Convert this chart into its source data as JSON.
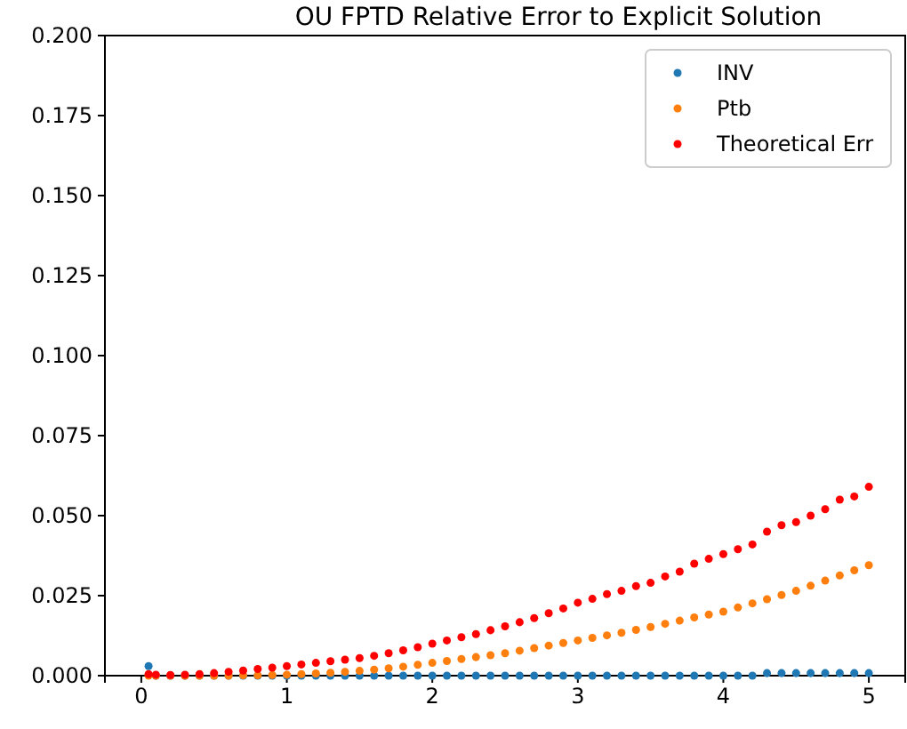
{
  "chart_data": {
    "type": "scatter",
    "title": "OU FPTD Relative Error to Explicit Solution",
    "x": [
      0.05,
      0.1,
      0.2,
      0.3,
      0.4,
      0.5,
      0.6,
      0.7,
      0.8,
      0.9,
      1.0,
      1.1,
      1.2,
      1.3,
      1.4,
      1.5,
      1.6,
      1.7,
      1.8,
      1.9,
      2.0,
      2.1,
      2.2,
      2.3,
      2.4,
      2.5,
      2.6,
      2.7,
      2.8,
      2.9,
      3.0,
      3.1,
      3.2,
      3.3,
      3.4,
      3.5,
      3.6,
      3.7,
      3.8,
      3.9,
      4.0,
      4.1,
      4.2,
      4.3,
      4.4,
      4.5,
      4.6,
      4.7,
      4.8,
      4.9,
      5.0
    ],
    "series": [
      {
        "name": "INV",
        "color": "#1f77b4",
        "values": [
          0.003,
          0,
          0,
          0,
          0,
          0,
          0,
          0,
          0,
          0,
          0,
          0,
          0,
          0,
          0,
          0,
          0,
          0,
          0,
          0,
          0,
          0,
          0,
          0,
          0,
          0,
          0,
          0,
          0,
          0,
          0,
          0,
          0,
          0,
          0,
          0,
          0,
          0,
          0,
          0,
          0,
          0,
          0,
          0.0008,
          0.0008,
          0.0008,
          0.0008,
          0.0008,
          0.0008,
          0.0008,
          0.0008
        ]
      },
      {
        "name": "Ptb",
        "color": "#ff7f0e",
        "values": [
          0,
          0,
          0,
          0,
          0,
          0,
          0,
          0.0001,
          0.0001,
          0.0002,
          0.0003,
          0.0005,
          0.0007,
          0.0009,
          0.0012,
          0.0015,
          0.0019,
          0.0023,
          0.0028,
          0.0034,
          0.004,
          0.0046,
          0.0052,
          0.0058,
          0.0064,
          0.007,
          0.0078,
          0.0086,
          0.0094,
          0.0102,
          0.011,
          0.0118,
          0.0126,
          0.0134,
          0.0143,
          0.0152,
          0.0162,
          0.0172,
          0.0182,
          0.0191,
          0.02,
          0.0213,
          0.0226,
          0.0239,
          0.0252,
          0.0265,
          0.0281,
          0.0297,
          0.0313,
          0.0329,
          0.0345
        ]
      },
      {
        "name": "Theoretical Err",
        "color": "#ff0000",
        "values": [
          0.0005,
          0.0003,
          0.0002,
          0.0003,
          0.0005,
          0.0008,
          0.0012,
          0.0016,
          0.0021,
          0.0025,
          0.003,
          0.0035,
          0.004,
          0.0045,
          0.005,
          0.0055,
          0.0062,
          0.007,
          0.0079,
          0.0089,
          0.01,
          0.011,
          0.012,
          0.013,
          0.0142,
          0.0154,
          0.0167,
          0.018,
          0.0195,
          0.021,
          0.0228,
          0.024,
          0.0255,
          0.0265,
          0.028,
          0.029,
          0.031,
          0.0325,
          0.035,
          0.0365,
          0.038,
          0.0395,
          0.041,
          0.045,
          0.047,
          0.048,
          0.05,
          0.052,
          0.055,
          0.056,
          0.059
        ]
      }
    ],
    "xlim": [
      -0.25,
      5.25
    ],
    "xticks": [
      0,
      1,
      2,
      3,
      4,
      5
    ],
    "ylim": [
      0,
      0.2
    ],
    "yticks": [
      {
        "value": 0,
        "label": "0.000"
      },
      {
        "value": 0.025,
        "label": "0.025"
      },
      {
        "value": 0.05,
        "label": "0.050"
      },
      {
        "value": 0.075,
        "label": "0.075"
      },
      {
        "value": 0.1,
        "label": "0.100"
      },
      {
        "value": 0.125,
        "label": "0.125"
      },
      {
        "value": 0.15,
        "label": "0.150"
      },
      {
        "value": 0.175,
        "label": "0.175"
      },
      {
        "value": 0.2,
        "label": "0.200"
      }
    ],
    "marker": "circle",
    "legend": "top right"
  }
}
